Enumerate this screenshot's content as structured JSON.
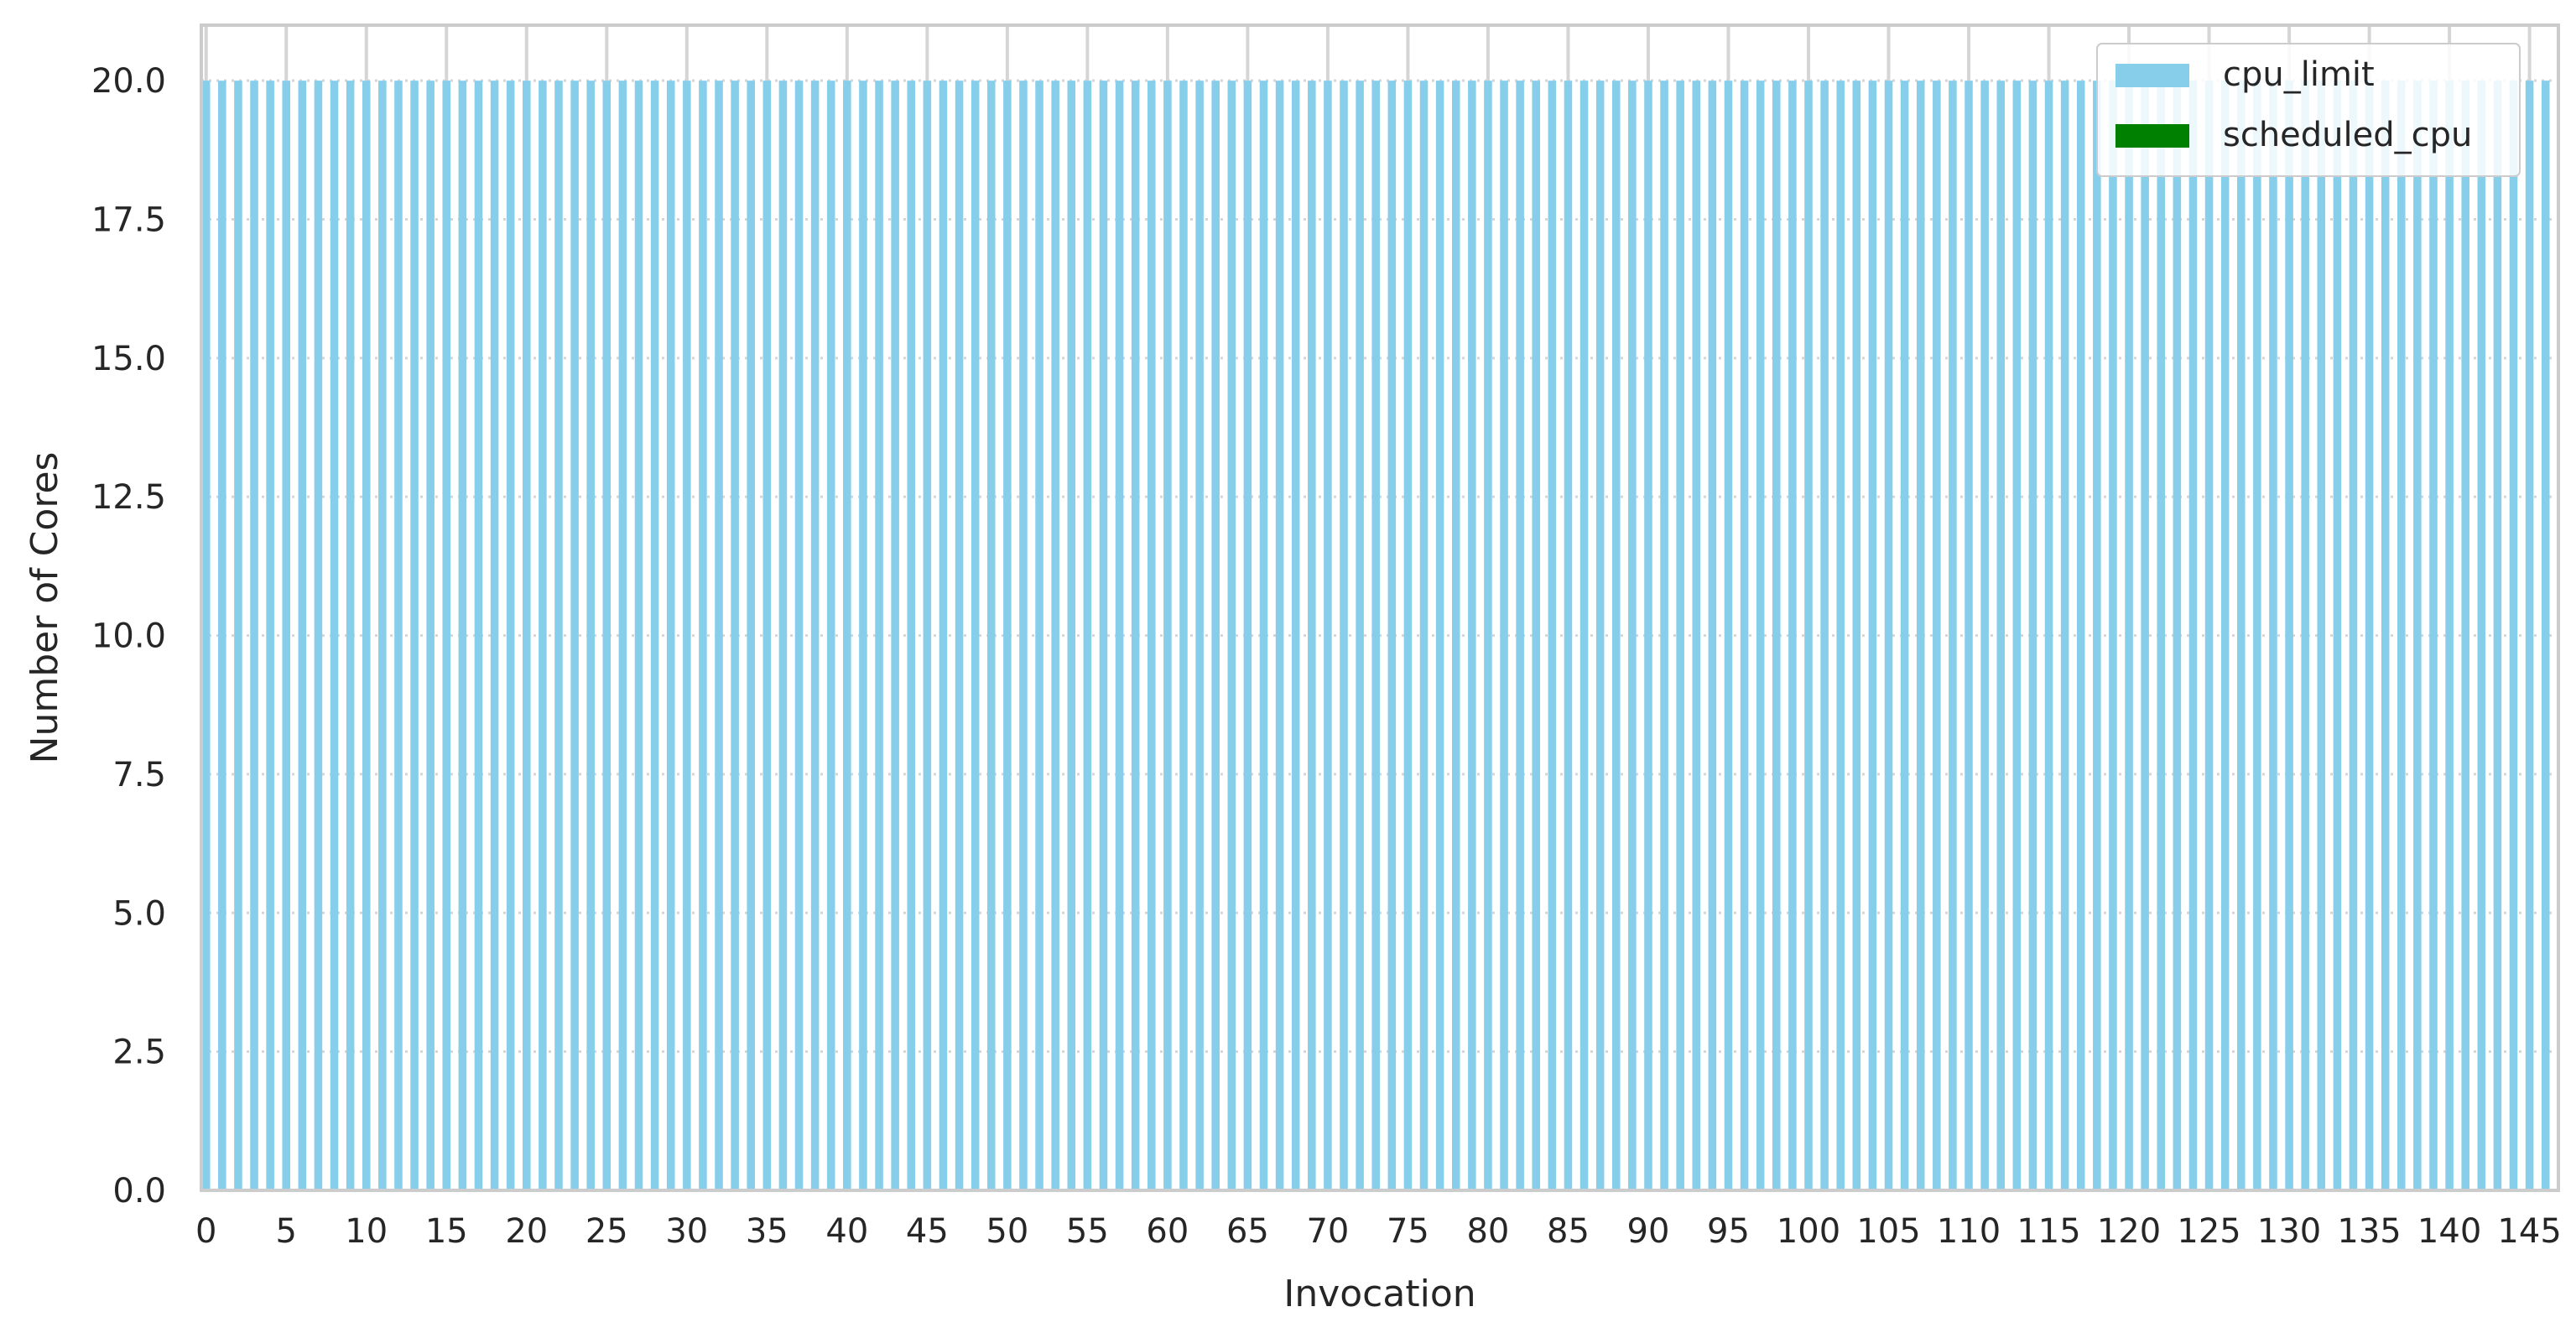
{
  "chart_data": {
    "type": "bar",
    "title": "",
    "xlabel": "Invocation",
    "ylabel": "Number of Cores",
    "ylim": [
      0,
      21
    ],
    "y_ticks": [
      "0.0",
      "2.5",
      "5.0",
      "7.5",
      "10.0",
      "12.5",
      "15.0",
      "17.5",
      "20.0"
    ],
    "x_tick_step": 5,
    "num_invocations": 147,
    "grid": true,
    "legend_position": "top-right",
    "series": [
      {
        "name": "cpu_limit",
        "color": "#87CEEB",
        "constant_value": 20.0
      },
      {
        "name": "scheduled_cpu",
        "color": "#008000",
        "constant_value": 0.0
      }
    ]
  }
}
